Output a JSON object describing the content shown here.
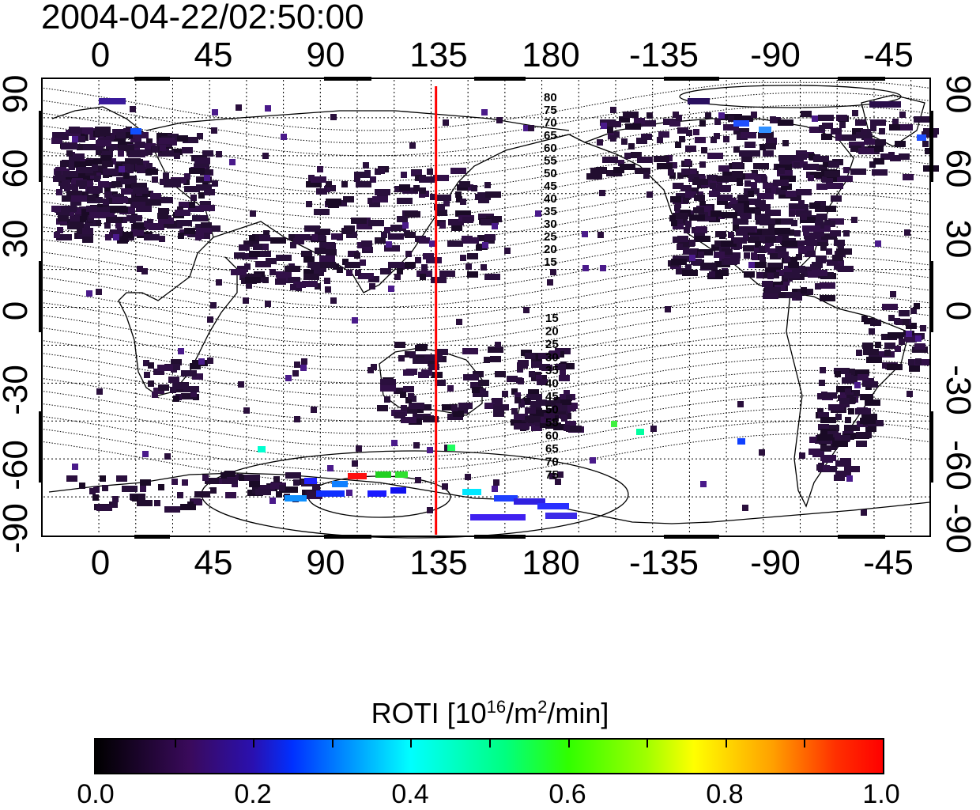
{
  "timestamp": "2004-04-22/02:50:00",
  "map": {
    "lon_ticks_top": [
      "0",
      "45",
      "90",
      "135",
      "180",
      "-135",
      "-90",
      "-45"
    ],
    "lon_ticks_bottom": [
      "0",
      "45",
      "90",
      "135",
      "180",
      "-135",
      "-90",
      "-45"
    ],
    "lat_ticks_left": [
      "90",
      "60",
      "30",
      "0",
      "-30",
      "-60",
      "-90"
    ],
    "lat_ticks_right": [
      "90",
      "60",
      "30",
      "0",
      "-30",
      "-60",
      "-90"
    ],
    "longitude_range_deg": [
      -22.5,
      337.5
    ],
    "latitude_range_deg": [
      -90,
      90
    ],
    "terminator_longitude_deg": 137,
    "magnetic_latitude_labels_north": [
      "80",
      "75",
      "70",
      "65",
      "60",
      "55",
      "50",
      "45",
      "40",
      "35",
      "30",
      "25",
      "20",
      "15"
    ],
    "magnetic_latitude_labels_south": [
      "15",
      "20",
      "25",
      "30",
      "35",
      "40",
      "45",
      "50",
      "55",
      "60",
      "65",
      "70",
      "75"
    ],
    "terminator_color": "#ff0000"
  },
  "colorbar": {
    "title_main": "ROTI  [10",
    "title_sup1": "16",
    "title_mid": "/m",
    "title_sup2": "2",
    "title_end": "/min]",
    "tick_labels": [
      "0.0",
      "0.2",
      "0.4",
      "0.6",
      "0.8",
      "1.0"
    ],
    "range": [
      0.0,
      1.0
    ]
  }
}
